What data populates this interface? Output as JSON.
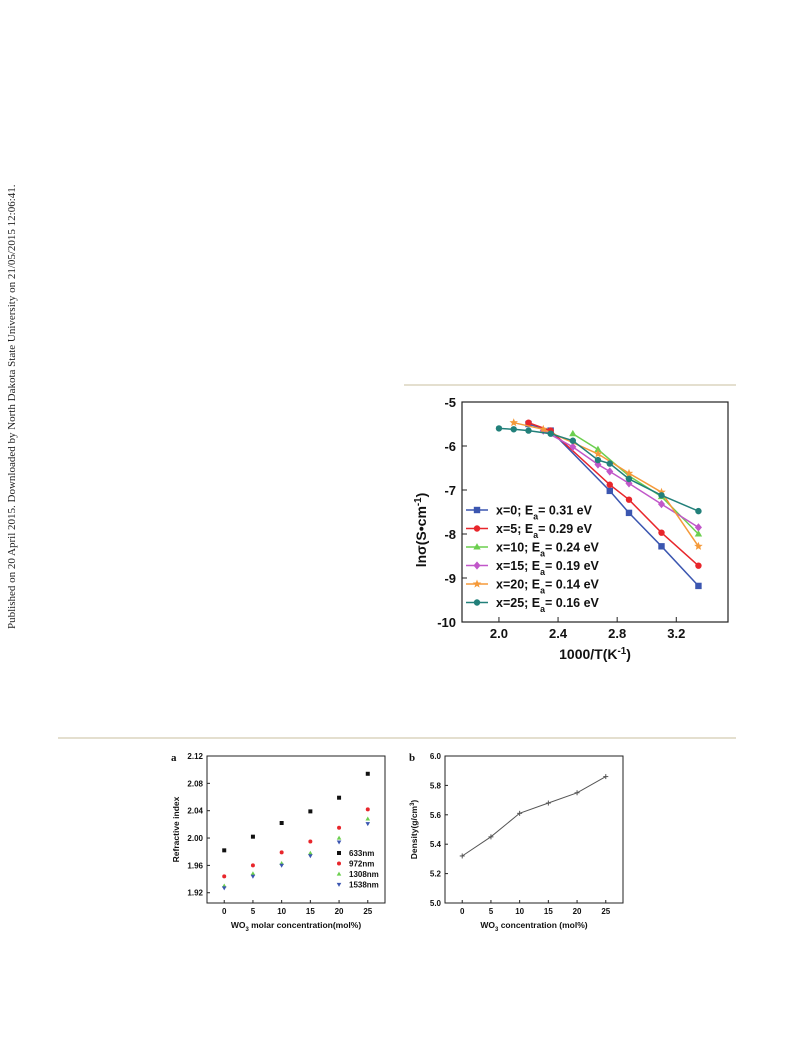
{
  "side_note": "Published on 20 April 2015. Downloaded by North Dakota State University on 21/05/2015 12:06:41.",
  "chart_data": [
    {
      "type": "line",
      "xlabel": "1000/T(K⁻¹)",
      "ylabel": "lnσ(S•cm⁻¹)",
      "xlim": [
        1.75,
        3.55
      ],
      "ylim": [
        -10,
        -5
      ],
      "xticks": [
        2.0,
        2.4,
        2.8,
        3.2
      ],
      "xtick_labels": [
        "2.0",
        "2.4",
        "2.8",
        "3.2"
      ],
      "yticks": [
        -5,
        -6,
        -7,
        -8,
        -9,
        -10
      ],
      "ytick_labels": [
        "-5",
        "-6",
        "-7",
        "-8",
        "-9",
        "-10"
      ],
      "legend_position": "lower-left",
      "series": [
        {
          "name": "x=0;   Eₐ= 0.31 eV",
          "color": "#3b56b0",
          "marker": "square",
          "x": [
            2.2,
            2.35,
            2.75,
            2.88,
            3.1,
            3.35
          ],
          "y": [
            -5.5,
            -5.65,
            -7.02,
            -7.52,
            -8.28,
            -9.18
          ]
        },
        {
          "name": "x=5;   Eₐ= 0.29 eV",
          "color": "#e8262b",
          "marker": "circle",
          "x": [
            2.2,
            2.35,
            2.75,
            2.88,
            3.1,
            3.35
          ],
          "y": [
            -5.47,
            -5.65,
            -6.88,
            -7.22,
            -7.97,
            -8.72
          ]
        },
        {
          "name": "x=10; Eₐ= 0.24 eV",
          "color": "#6ccf4f",
          "marker": "triangle",
          "x": [
            2.5,
            2.67,
            2.88,
            3.1,
            3.35
          ],
          "y": [
            -5.72,
            -6.08,
            -6.68,
            -7.15,
            -8.0
          ]
        },
        {
          "name": "x=15; Eₐ= 0.19 eV",
          "color": "#c157c9",
          "marker": "diamond",
          "x": [
            2.3,
            2.5,
            2.67,
            2.75,
            2.88,
            3.1,
            3.35
          ],
          "y": [
            -5.65,
            -6.02,
            -6.42,
            -6.58,
            -6.85,
            -7.32,
            -7.85
          ]
        },
        {
          "name": "x=20; Eₐ= 0.14 eV",
          "color": "#f59a3a",
          "marker": "star",
          "x": [
            2.1,
            2.3,
            2.67,
            2.88,
            3.1,
            3.35
          ],
          "y": [
            -5.47,
            -5.62,
            -6.18,
            -6.62,
            -7.05,
            -8.28
          ]
        },
        {
          "name": "x=25; Eₐ= 0.16 eV",
          "color": "#22807a",
          "marker": "circle",
          "x": [
            2.0,
            2.1,
            2.2,
            2.35,
            2.5,
            2.67,
            2.75,
            2.88,
            3.1,
            3.35
          ],
          "y": [
            -5.6,
            -5.62,
            -5.65,
            -5.72,
            -5.88,
            -6.32,
            -6.4,
            -6.75,
            -7.12,
            -7.48
          ]
        }
      ]
    },
    {
      "type": "scatter",
      "panel_label": "a",
      "xlabel": "WO₃ molar concentration(mol%)",
      "ylabel": "Refractive index",
      "xlim": [
        -3,
        28
      ],
      "ylim": [
        1.905,
        2.12
      ],
      "xticks": [
        0,
        5,
        10,
        15,
        20,
        25
      ],
      "xtick_labels": [
        "0",
        "5",
        "10",
        "15",
        "20",
        "25"
      ],
      "yticks": [
        1.92,
        1.96,
        2.0,
        2.04,
        2.08,
        2.12
      ],
      "ytick_labels": [
        "1.92",
        "1.96",
        "2.00",
        "2.04",
        "2.08",
        "2.12"
      ],
      "legend_position": "lower-right",
      "x": [
        0,
        5,
        10,
        15,
        20,
        25
      ],
      "series": [
        {
          "name": "633nm",
          "color": "#111111",
          "marker": "square",
          "values": [
            1.982,
            2.002,
            2.022,
            2.039,
            2.059,
            2.094
          ]
        },
        {
          "name": "972nm",
          "color": "#e8262b",
          "marker": "circle",
          "values": [
            1.944,
            1.96,
            1.979,
            1.995,
            2.015,
            2.042
          ]
        },
        {
          "name": "1308nm",
          "color": "#6ccf4f",
          "marker": "triangle",
          "values": [
            1.93,
            1.948,
            1.963,
            1.978,
            2.0,
            2.028
          ]
        },
        {
          "name": "1538nm",
          "color": "#3b56b0",
          "marker": "triangle-down",
          "values": [
            1.927,
            1.944,
            1.96,
            1.974,
            1.994,
            2.021
          ]
        }
      ]
    },
    {
      "type": "line",
      "panel_label": "b",
      "xlabel": "WO₃ concentration (mol%)",
      "ylabel": "Density(g/cm³)",
      "xlim": [
        -3,
        28
      ],
      "ylim": [
        5.0,
        6.0
      ],
      "xticks": [
        0,
        5,
        10,
        15,
        20,
        25
      ],
      "xtick_labels": [
        "0",
        "5",
        "10",
        "15",
        "20",
        "25"
      ],
      "yticks": [
        5.0,
        5.2,
        5.4,
        5.6,
        5.8,
        6.0
      ],
      "ytick_labels": [
        "5.0",
        "5.2",
        "5.4",
        "5.6",
        "5.8",
        "6.0"
      ],
      "series": [
        {
          "color": "#555555",
          "marker": "cross",
          "x": [
            0,
            5,
            10,
            15,
            20,
            25
          ],
          "values": [
            5.32,
            5.45,
            5.61,
            5.68,
            5.75,
            5.86
          ]
        }
      ]
    }
  ]
}
